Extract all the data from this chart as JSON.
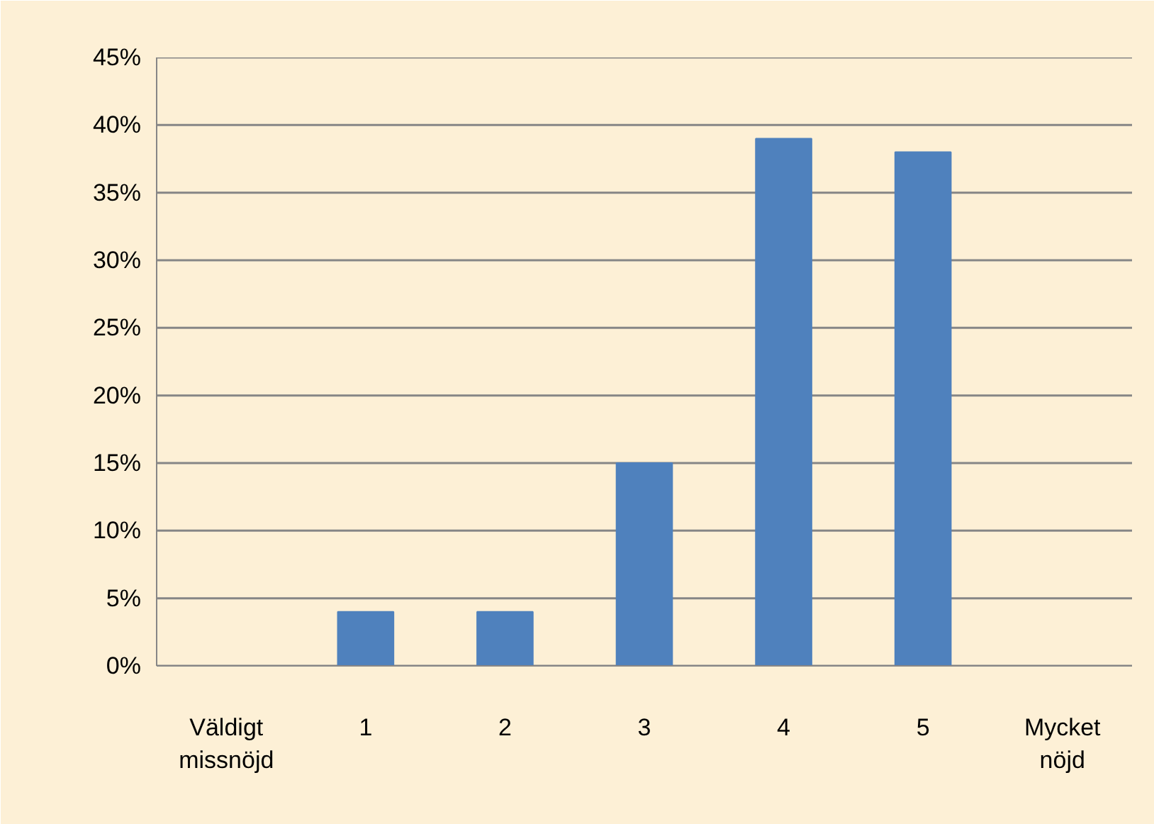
{
  "chart_data": {
    "type": "bar",
    "categories": [
      "Väldigt missnöjd",
      "1",
      "2",
      "3",
      "4",
      "5",
      "Mycket nöjd"
    ],
    "values": [
      null,
      4,
      4,
      15,
      39,
      38,
      null
    ],
    "color": "#4f81bd",
    "ylim": [
      0,
      45
    ],
    "yticks": [
      {
        "value": 0,
        "label": "0%"
      },
      {
        "value": 5,
        "label": "5%"
      },
      {
        "value": 10,
        "label": "10%"
      },
      {
        "value": 15,
        "label": "15%"
      },
      {
        "value": 20,
        "label": "20%"
      },
      {
        "value": 25,
        "label": "25%"
      },
      {
        "value": 30,
        "label": "30%"
      },
      {
        "value": 35,
        "label": "35%"
      },
      {
        "value": 40,
        "label": "40%"
      },
      {
        "value": 45,
        "label": "45%"
      }
    ],
    "grid": "y"
  }
}
